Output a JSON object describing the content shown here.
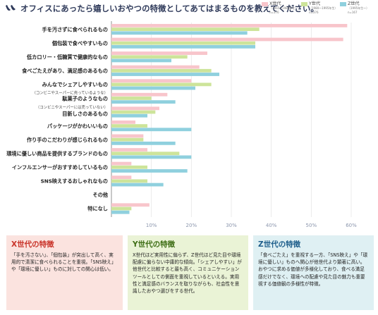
{
  "title": "オフィスにあったら嬉しいおやつの特徴としてあてはまるものを教えてください。",
  "legend": [
    {
      "name": "X世代",
      "sub1": "（1965〜1980年生）",
      "sub2": "n=376",
      "color": "#f8c5cb"
    },
    {
      "name": "Y世代",
      "sub1": "（1980〜1995年生）",
      "sub2": "n=376",
      "color": "#cde49a"
    },
    {
      "name": "Z世代",
      "sub1": "（1995年生〜）",
      "sub2": "n=167",
      "color": "#8fd0de"
    }
  ],
  "chart_data": {
    "type": "bar",
    "orientation": "horizontal",
    "categories": [
      "手を汚さずに食べられるもの",
      "個包装で食べやすいもの",
      "低カロリー・低糖質で健康的なもの",
      "食べごたえがあり、満足感のあるもの",
      "みんなでシェアしやすいもの",
      "駄菓子のようなもの",
      "目新しさのあるもの",
      "パッケージがかわいいもの",
      "作り手のこだわりが感じられるもの",
      "環境に優しい商品を提供するブランドのもの",
      "インフルエンサーがおすすめしているもの",
      "SNS映えするおしゃれなもの",
      "その他",
      "特になし"
    ],
    "category_notes": [
      "",
      "",
      "",
      "",
      "",
      "（コンビニやスーパーに売っているような）",
      "（コンビニやスーパーには売っていない）",
      "",
      "",
      "",
      "",
      "",
      "",
      ""
    ],
    "series": [
      {
        "name": "X世代",
        "values": [
          59,
          58,
          24,
          22,
          20,
          14,
          12,
          6,
          8,
          9,
          5,
          5,
          0,
          9.5
        ]
      },
      {
        "name": "Y世代",
        "values": [
          37,
          36,
          19,
          25,
          25,
          10,
          11,
          9,
          8,
          17,
          9,
          9,
          0,
          5
        ]
      },
      {
        "name": "Z世代",
        "values": [
          34,
          36,
          15,
          27,
          21,
          16,
          9,
          20,
          16,
          20,
          19,
          13,
          0,
          4.5
        ]
      }
    ],
    "x_ticks": [
      "10%",
      "20%",
      "30%",
      "40%",
      "50%",
      "60%"
    ],
    "tick_values": [
      10,
      20,
      30,
      40,
      50,
      60
    ],
    "xlim": [
      0,
      62
    ],
    "grid": true,
    "legend_position": "top-right"
  },
  "summary": {
    "x": {
      "title": "X世代の特徴",
      "body": "「手を汚さない」、「個包装」が突出して高く、実用的で清潔に食べられることを重視。「SNS映え」や「環境に優しい」ものに対しての関心は低い。"
    },
    "y": {
      "title": "Y世代の特徴",
      "body": "X世代ほど実用性に偏らず、Z世代ほど見た目や環境配慮に偏らない中庸的な傾向。「シェアしやすい」が他世代と比較すると最も高く、コミュニケーションツールとしての側面を重視しているといえる。実用性と満足感のバランスを取りながらも、社会性を意識したおやつ選びをする世代。"
    },
    "z": {
      "title": "Z世代の特徴",
      "body": "「食べごたえ」を重視する一方、「SNS映え」や「環境に優しい」ものへ関心が他世代より顕著に高い。おやつに求める価値が多様化しており、食べる満足感だけでなく、環境への配慮や見た目の魅力も重要視する価値観の多様性が特徴。"
    }
  }
}
